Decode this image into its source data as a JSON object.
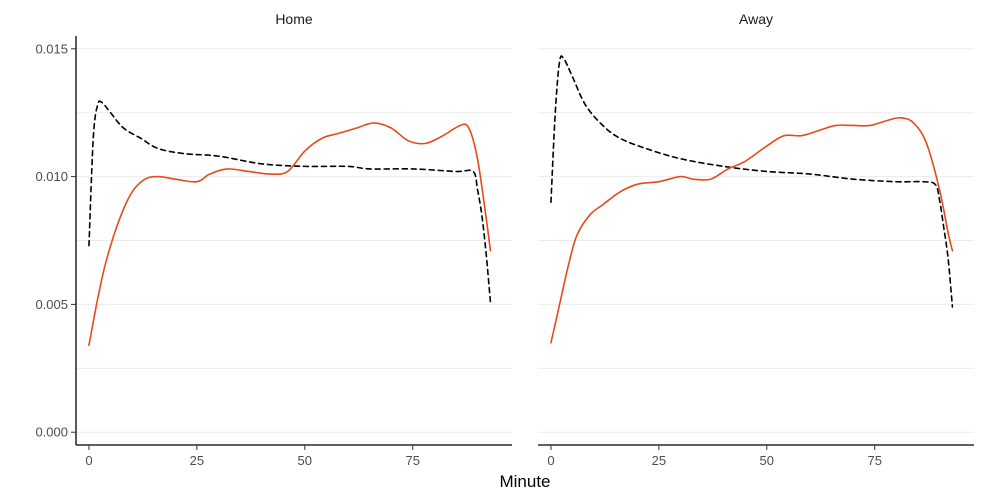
{
  "chart_data": {
    "type": "line",
    "xlabel": "Minute",
    "ylabel": "",
    "xlim": [
      -3,
      98
    ],
    "ylim": [
      -0.0005,
      0.0155
    ],
    "x_ticks": [
      0,
      25,
      50,
      75
    ],
    "x_tick_labels": [
      "0",
      "25",
      "50",
      "75"
    ],
    "y_ticks": [
      0,
      0.005,
      0.01,
      0.015
    ],
    "y_tick_labels": [
      "0.000",
      "0.005",
      "0.010",
      "0.015"
    ],
    "y_minor_grid": [
      0.0025,
      0.0075,
      0.0125
    ],
    "grid": "horizontal",
    "legend": "none",
    "panels": [
      {
        "title": "Home",
        "series": [
          {
            "style": "dashed",
            "color": "#000000",
            "points": [
              [
                0,
                0.0073
              ],
              [
                1,
                0.0115
              ],
              [
                2,
                0.0128
              ],
              [
                3,
                0.0129
              ],
              [
                5,
                0.0125
              ],
              [
                8,
                0.0119
              ],
              [
                12,
                0.0115
              ],
              [
                16,
                0.0111
              ],
              [
                22,
                0.0109
              ],
              [
                30,
                0.0108
              ],
              [
                40,
                0.0105
              ],
              [
                50,
                0.0104
              ],
              [
                60,
                0.0104
              ],
              [
                65,
                0.0103
              ],
              [
                75,
                0.0103
              ],
              [
                85,
                0.0102
              ],
              [
                89,
                0.0102
              ],
              [
                90,
                0.0095
              ],
              [
                91,
                0.0085
              ],
              [
                92,
                0.007
              ],
              [
                93,
                0.0051
              ]
            ]
          },
          {
            "style": "solid",
            "color": "#e64a19",
            "points": [
              [
                0,
                0.0034
              ],
              [
                2,
                0.0052
              ],
              [
                4,
                0.0067
              ],
              [
                7,
                0.0083
              ],
              [
                10,
                0.0094
              ],
              [
                13,
                0.0099
              ],
              [
                16,
                0.01
              ],
              [
                20,
                0.0099
              ],
              [
                25,
                0.0098
              ],
              [
                28,
                0.0101
              ],
              [
                32,
                0.0103
              ],
              [
                37,
                0.0102
              ],
              [
                42,
                0.0101
              ],
              [
                46,
                0.0102
              ],
              [
                50,
                0.011
              ],
              [
                54,
                0.0115
              ],
              [
                58,
                0.0117
              ],
              [
                62,
                0.0119
              ],
              [
                66,
                0.0121
              ],
              [
                70,
                0.0119
              ],
              [
                74,
                0.0114
              ],
              [
                78,
                0.0113
              ],
              [
                82,
                0.0116
              ],
              [
                86,
                0.012
              ],
              [
                88,
                0.0119
              ],
              [
                90,
                0.0107
              ],
              [
                92,
                0.0084
              ],
              [
                93,
                0.0071
              ]
            ]
          }
        ]
      },
      {
        "title": "Away",
        "series": [
          {
            "style": "dashed",
            "color": "#000000",
            "points": [
              [
                0,
                0.009
              ],
              [
                1,
                0.0125
              ],
              [
                2,
                0.0145
              ],
              [
                3,
                0.0146
              ],
              [
                5,
                0.0139
              ],
              [
                8,
                0.0128
              ],
              [
                12,
                0.012
              ],
              [
                16,
                0.0115
              ],
              [
                22,
                0.0111
              ],
              [
                30,
                0.0107
              ],
              [
                40,
                0.0104
              ],
              [
                50,
                0.0102
              ],
              [
                60,
                0.0101
              ],
              [
                70,
                0.0099
              ],
              [
                80,
                0.0098
              ],
              [
                86,
                0.0098
              ],
              [
                89,
                0.0097
              ],
              [
                90,
                0.0091
              ],
              [
                91,
                0.008
              ],
              [
                92,
                0.0068
              ],
              [
                93,
                0.0049
              ]
            ]
          },
          {
            "style": "solid",
            "color": "#e64a19",
            "points": [
              [
                0,
                0.0035
              ],
              [
                2,
                0.005
              ],
              [
                4,
                0.0065
              ],
              [
                6,
                0.0077
              ],
              [
                9,
                0.0085
              ],
              [
                12,
                0.0089
              ],
              [
                16,
                0.0094
              ],
              [
                20,
                0.0097
              ],
              [
                25,
                0.0098
              ],
              [
                30,
                0.01
              ],
              [
                33,
                0.0099
              ],
              [
                37,
                0.0099
              ],
              [
                41,
                0.0103
              ],
              [
                45,
                0.0106
              ],
              [
                50,
                0.0112
              ],
              [
                54,
                0.0116
              ],
              [
                58,
                0.0116
              ],
              [
                62,
                0.0118
              ],
              [
                66,
                0.012
              ],
              [
                70,
                0.012
              ],
              [
                74,
                0.012
              ],
              [
                78,
                0.0122
              ],
              [
                81,
                0.0123
              ],
              [
                84,
                0.0121
              ],
              [
                87,
                0.0113
              ],
              [
                90,
                0.0095
              ],
              [
                92,
                0.0078
              ],
              [
                93,
                0.0071
              ]
            ]
          }
        ]
      }
    ]
  }
}
